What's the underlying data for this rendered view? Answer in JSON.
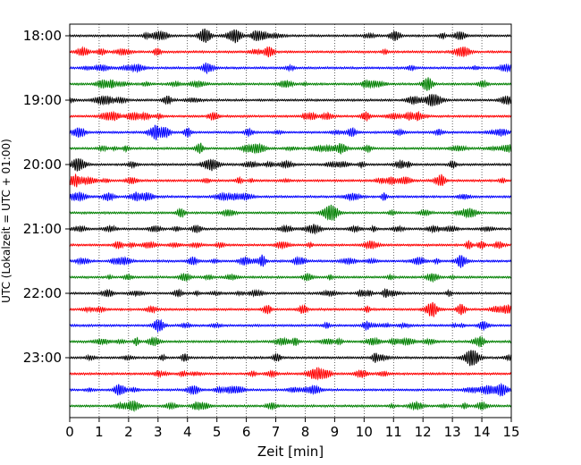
{
  "chart_data": {
    "type": "line",
    "title": "",
    "xlabel": "Zeit  [min]",
    "ylabel": "UTC (Lokalzeit = UTC + 01:00)",
    "xlim": [
      0,
      15
    ],
    "x_ticks": [
      "0",
      "1",
      "2",
      "3",
      "4",
      "5",
      "6",
      "7",
      "8",
      "9",
      "10",
      "11",
      "12",
      "13",
      "14",
      "15"
    ],
    "y_tick_labels": [
      "18:00",
      "19:00",
      "20:00",
      "21:00",
      "22:00",
      "23:00"
    ],
    "grid": "vertical dotted",
    "trace_colors": [
      "#000000",
      "#ff0000",
      "#0000ff",
      "#008000"
    ],
    "trace_count": 24,
    "trace_minutes": 15,
    "start_time": "18:00",
    "end_time": "23:45"
  }
}
